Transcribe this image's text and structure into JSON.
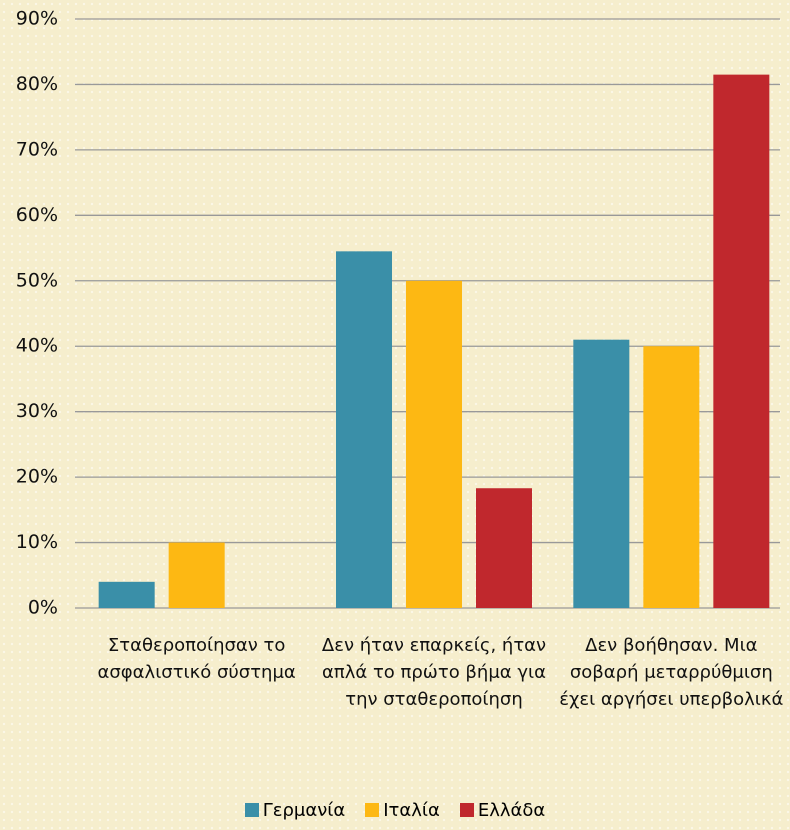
{
  "chart_data": {
    "type": "bar",
    "categories": [
      "Σταθεροποίησαν το ασφαλιστικό σύστημα",
      "Δεν ήταν επαρκείς, ήταν απλά το πρώτο βήμα για την σταθεροποίηση",
      "Δεν βοήθησαν. Μια σοβαρή μεταρρύθμιση έχει αργήσει υπερβολικά"
    ],
    "series": [
      {
        "name": "Γερμανία",
        "color": "#3a8fa8",
        "values": [
          4,
          54.5,
          41
        ]
      },
      {
        "name": "Ιταλία",
        "color": "#fdb813",
        "values": [
          10,
          50,
          40
        ]
      },
      {
        "name": "Ελλάδα",
        "color": "#c0282d",
        "values": [
          0,
          18.3,
          81.5
        ]
      }
    ],
    "ylim": [
      0,
      90
    ],
    "yticks": [
      {
        "value": 0,
        "label": "0%"
      },
      {
        "value": 10,
        "label": "10%"
      },
      {
        "value": 20,
        "label": "20%"
      },
      {
        "value": 30,
        "label": "30%"
      },
      {
        "value": 40,
        "label": "40%"
      },
      {
        "value": 50,
        "label": "50%"
      },
      {
        "value": 60,
        "label": "60%"
      },
      {
        "value": 70,
        "label": "70%"
      },
      {
        "value": 80,
        "label": "80%"
      },
      {
        "value": 90,
        "label": "90%"
      }
    ],
    "grid": true,
    "legend": "bottom"
  }
}
